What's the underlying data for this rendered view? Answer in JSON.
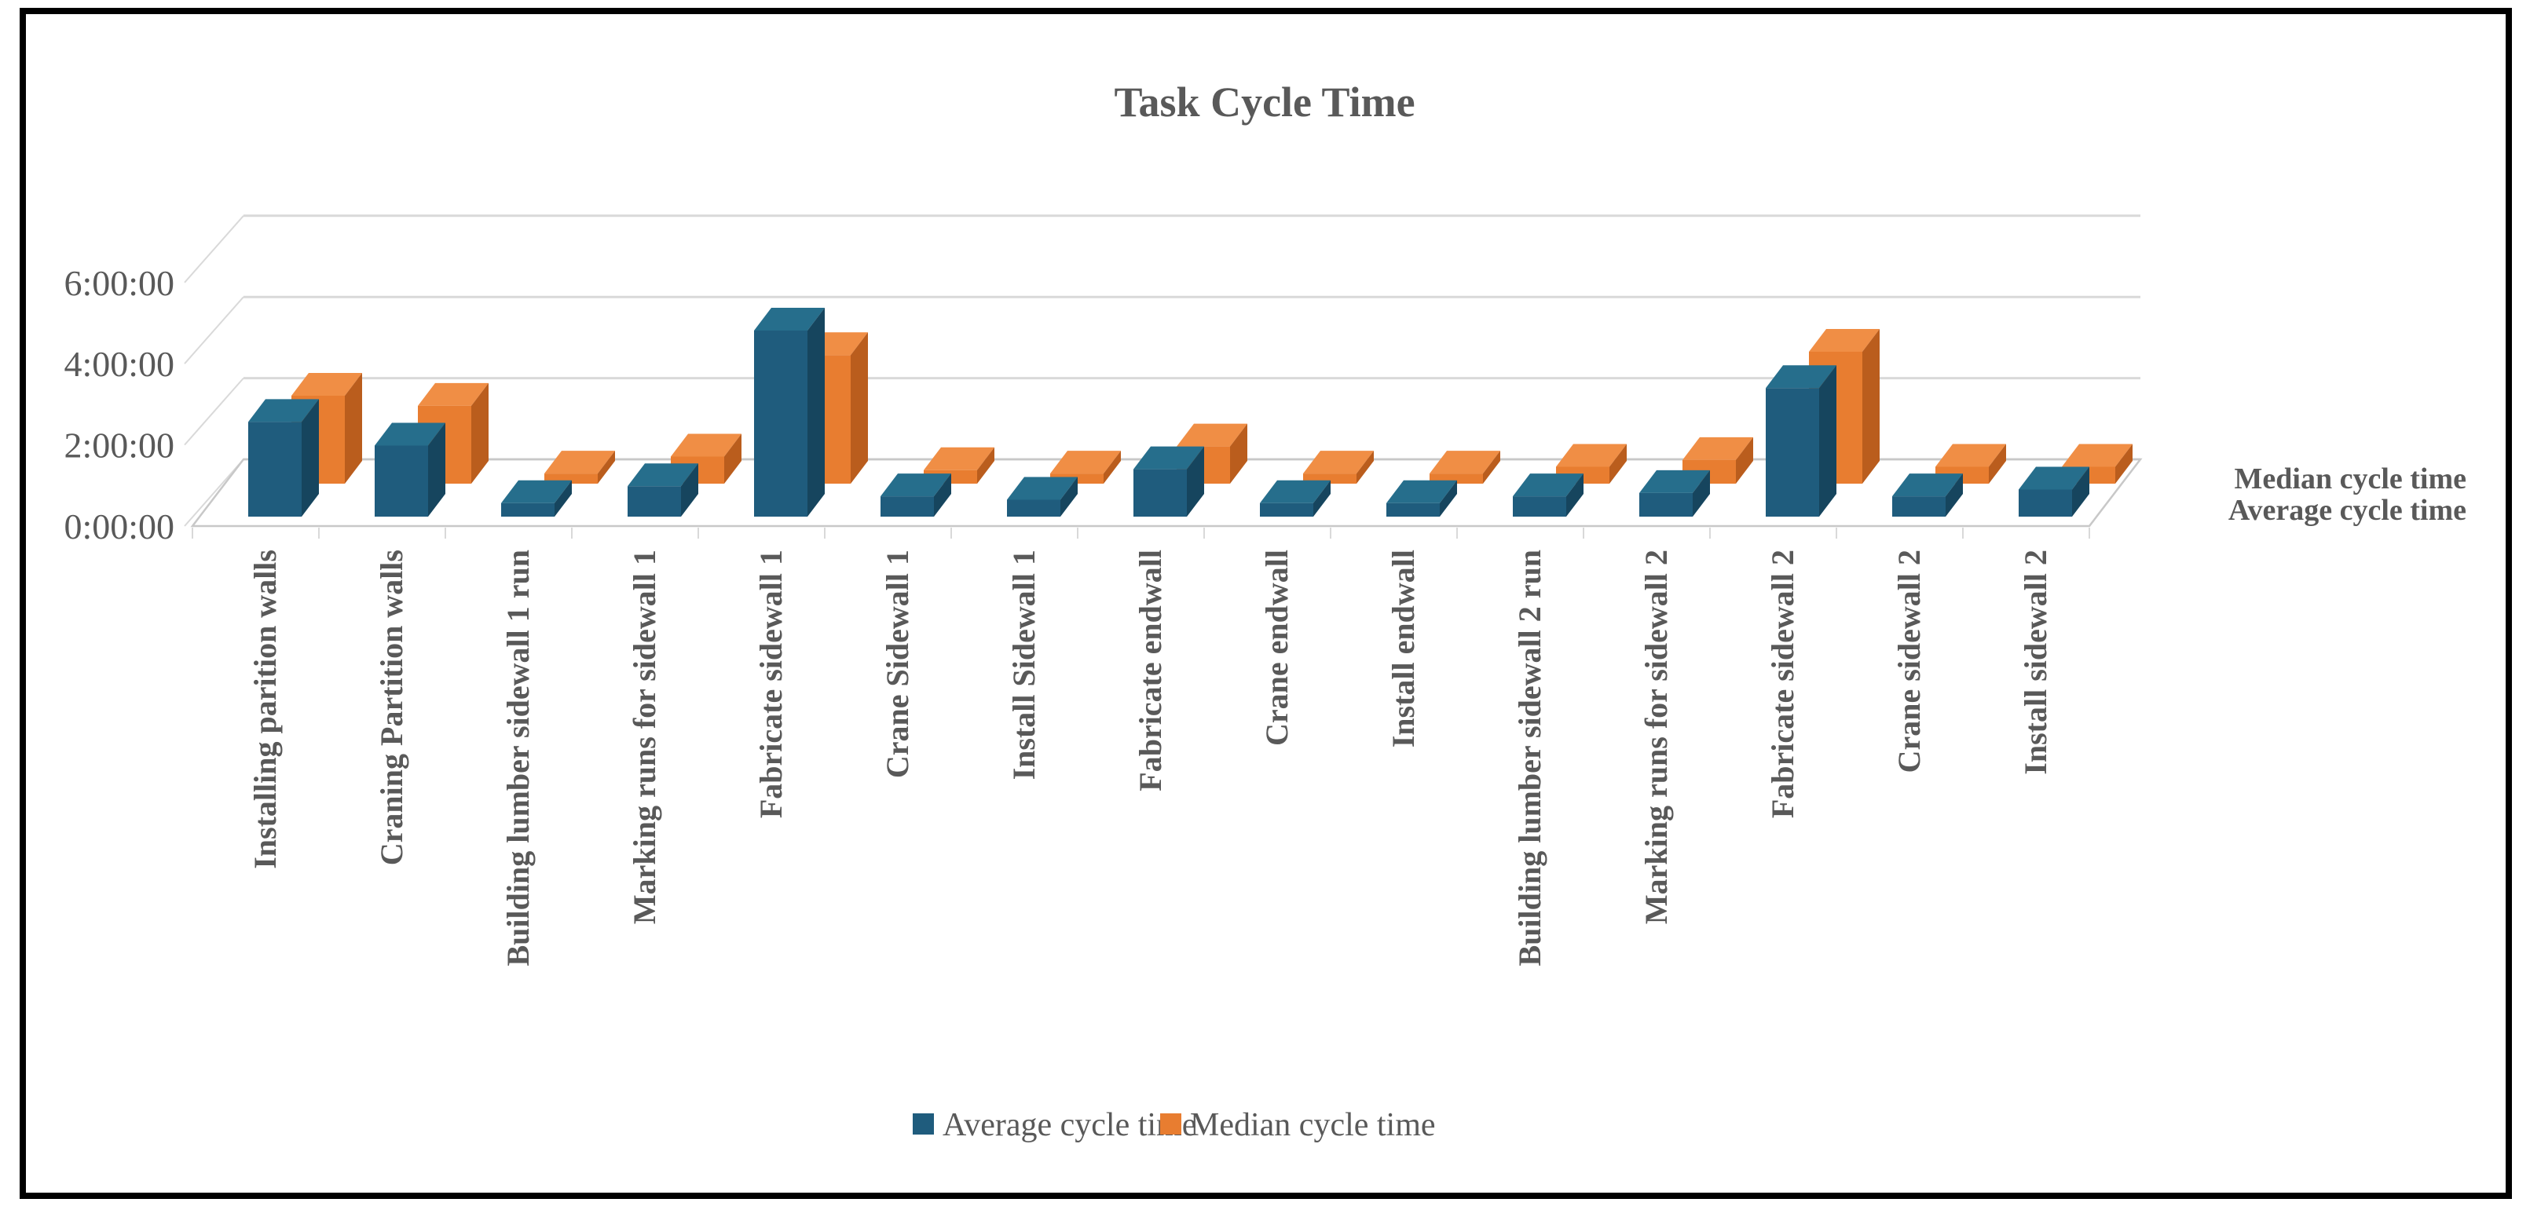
{
  "title": "Task Cycle Time",
  "colors": {
    "text": "#595959",
    "gridline": "#D9D9D9",
    "floor_edge": "#C8C8C8",
    "border": "#000000",
    "average_front": "#1F5C7D",
    "average_top": "#266E8C",
    "average_side": "#16455E",
    "median_front": "#E87D30",
    "median_top": "#F08E45",
    "median_side": "#BA5D1D"
  },
  "y_axis": {
    "tick_labels": [
      "0:00:00",
      "2:00:00",
      "4:00:00",
      "6:00:00"
    ],
    "tick_hours": [
      0,
      2,
      4,
      6
    ],
    "max_hours": 6
  },
  "series_axis": [
    "Median cycle time",
    "Average cycle time"
  ],
  "legend": [
    {
      "label": "Average cycle time",
      "color_key": "average_front"
    },
    {
      "label": "Median cycle time",
      "color_key": "median_front"
    }
  ],
  "chart_data": {
    "type": "bar",
    "variant": "3d-column",
    "title": "Task Cycle Time",
    "xlabel": "",
    "ylabel": "",
    "ylim_hours": [
      0,
      6
    ],
    "grid": true,
    "legend_position": "bottom",
    "categories": [
      "Installing parition walls",
      "Craning Partition walls",
      "Building lumber sidewall 1 run",
      "Marking runs for sidewall 1",
      "Fabricate sidewall 1",
      "Crane Sidewall 1",
      "Install Sidewall 1",
      "Fabricate endwall",
      "Crane endwall",
      "Install  endwall",
      "Building lumber sidewall 2 run",
      "Marking runs for sidewall 2",
      "Fabricate sidewall 2",
      "Crane sidewall 2",
      "Install sidewall 2"
    ],
    "series": [
      {
        "name": "Average cycle time",
        "row": "front",
        "values_hhmmss": [
          "2:20:00",
          "1:45:00",
          "0:20:00",
          "0:45:00",
          "4:35:00",
          "0:30:00",
          "0:25:00",
          "1:10:00",
          "0:20:00",
          "0:20:00",
          "0:30:00",
          "0:35:00",
          "3:10:00",
          "0:30:00",
          "0:40:00"
        ]
      },
      {
        "name": "Median cycle time",
        "row": "back",
        "values_hhmmss": [
          "2:10:00",
          "1:55:00",
          "0:15:00",
          "0:40:00",
          "3:10:00",
          "0:20:00",
          "0:15:00",
          "0:55:00",
          "0:15:00",
          "0:15:00",
          "0:25:00",
          "0:35:00",
          "3:15:00",
          "0:25:00",
          "0:25:00"
        ]
      }
    ]
  }
}
